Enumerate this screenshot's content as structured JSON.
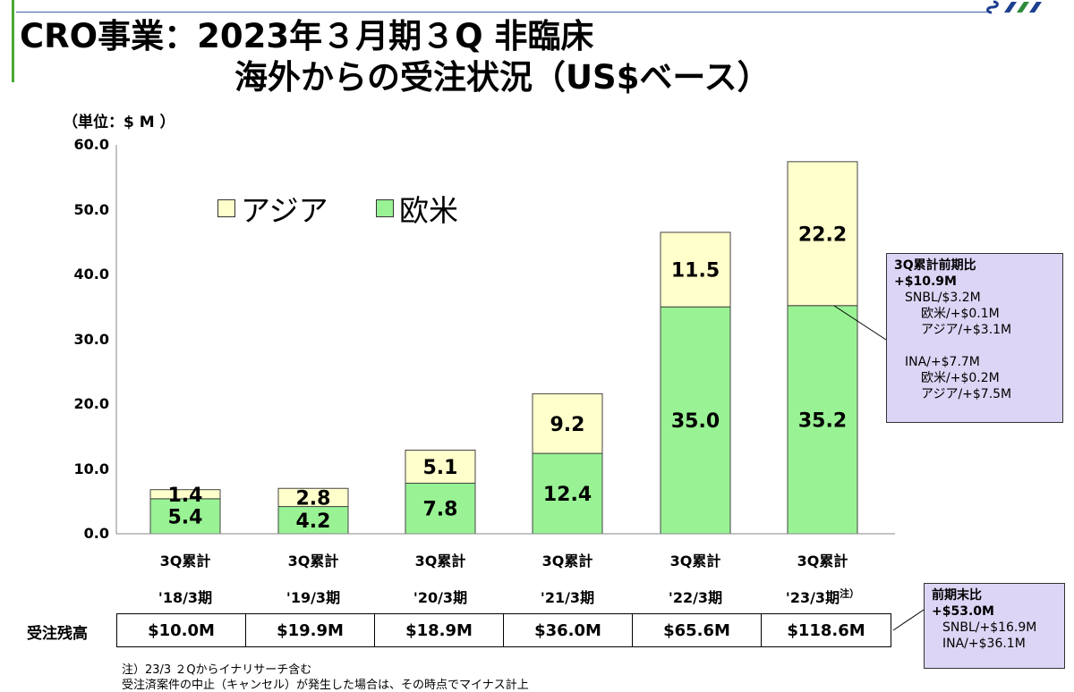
{
  "title": {
    "line1": "CRO事業：2023年３月期３Q 非臨床",
    "line2": "海外からの受注状況（US$ベース）"
  },
  "unit_label": "（単位：$ M ）",
  "chart_data": {
    "type": "bar",
    "stacked": true,
    "categories": [
      [
        "3Q累計",
        "'18/3期"
      ],
      [
        "3Q累計",
        "'19/3期"
      ],
      [
        "3Q累計",
        "'20/3期"
      ],
      [
        "3Q累計",
        "'21/3期"
      ],
      [
        "3Q累計",
        "'22/3期"
      ],
      [
        "3Q累計",
        "'23/3期"
      ]
    ],
    "category_notes": [
      "",
      "",
      "",
      "",
      "",
      "注）"
    ],
    "series": [
      {
        "name": "欧米",
        "color": "#99f294",
        "values": [
          5.4,
          4.2,
          7.8,
          12.4,
          35.0,
          35.2
        ],
        "labels": [
          "5.4",
          "4.2",
          "7.8",
          "12.4",
          "35.0",
          "35.2"
        ]
      },
      {
        "name": "アジア",
        "color": "#ffffcc",
        "values": [
          1.4,
          2.8,
          5.1,
          9.2,
          11.5,
          22.2
        ],
        "labels": [
          "1.4",
          "2.8",
          "5.1",
          "9.2",
          "11.5",
          "22.2"
        ]
      }
    ],
    "ylim": [
      0,
      60
    ],
    "yticks": [
      "0.0",
      "10.0",
      "20.0",
      "30.0",
      "40.0",
      "50.0",
      "60.0"
    ],
    "legend": [
      {
        "name": "アジア",
        "color": "#ffffcc"
      },
      {
        "name": "欧米",
        "color": "#99f294"
      }
    ],
    "legend_position": "top-left"
  },
  "callout_3q": {
    "heading1": "3Q累計前期比",
    "heading2": "+$10.9M",
    "snbl": "SNBL/$3.2M",
    "snbl_west": "欧米/+$0.1M",
    "snbl_asia": "アジア/+$3.1M",
    "ina": "INA/+$7.7M",
    "ina_west": "欧米/+$0.2M",
    "ina_asia": "アジア/+$7.5M"
  },
  "backlog": {
    "label": "受注残高",
    "values": [
      "$10.0M",
      "$19.9M",
      "$18.9M",
      "$36.0M",
      "$65.6M",
      "$118.6M"
    ]
  },
  "callout_backlog": {
    "heading1": "前期末比",
    "heading2": "+$53.0M",
    "snbl": "SNBL/+$16.9M",
    "ina": "INA/+$36.1M"
  },
  "notes": {
    "line1": "注）23/3 ２Qからイナリサーチ含む",
    "line2": "受注済案件の中止（キャンセル）が発生した場合は、その時点でマイナス計上"
  },
  "colors": {
    "accent_line": "#3b62a8",
    "brand_green": "#4aa830",
    "callout_bg": "#ddd5f5"
  }
}
